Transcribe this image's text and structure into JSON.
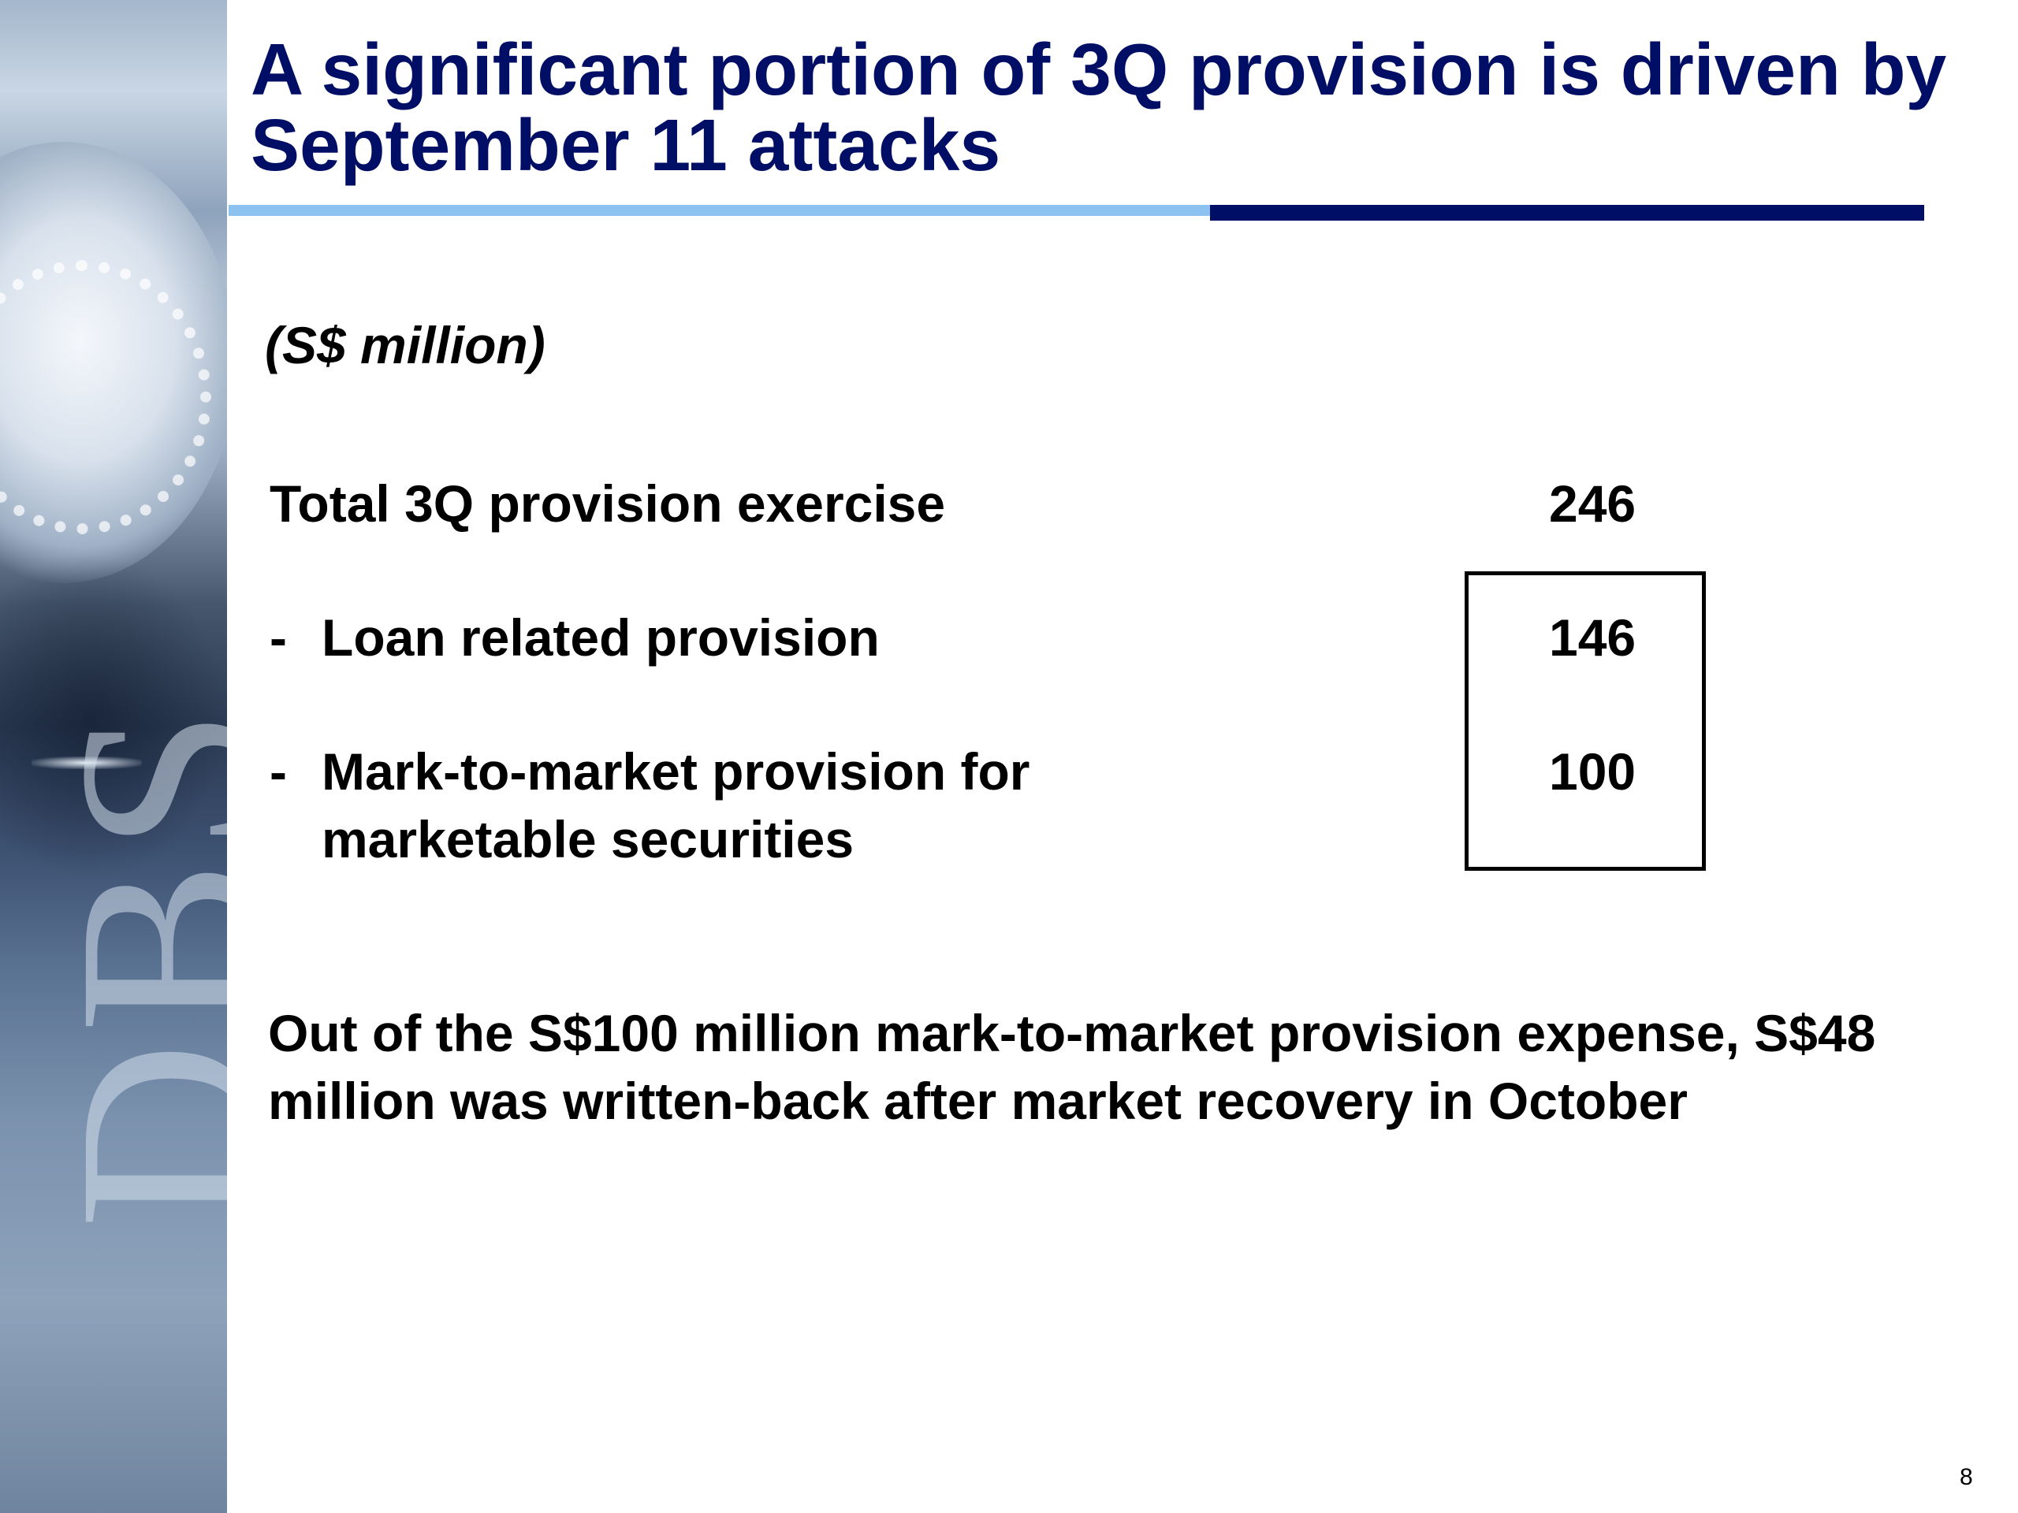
{
  "slide": {
    "title": "A significant portion of 3Q provision is driven by September 11 attacks",
    "unit": "(S$ million)",
    "rows": [
      {
        "dash": "",
        "label": "Total 3Q provision exercise",
        "label_cont": "",
        "value": "246"
      },
      {
        "dash": "-",
        "label": "Loan related provision",
        "label_cont": "",
        "value": "146"
      },
      {
        "dash": "-",
        "label": "Mark-to-market provision for",
        "label_cont": "marketable securities",
        "value": "100"
      }
    ],
    "note": "Out of the S$100 million mark-to-market provision expense, S$48 million was written-back after market recovery in October",
    "page_number": "8",
    "logo_text": "DBS"
  },
  "colors": {
    "title": "#000e66",
    "rule_light": "#8cc2f0",
    "rule_dark": "#000e66",
    "text": "#000000"
  }
}
